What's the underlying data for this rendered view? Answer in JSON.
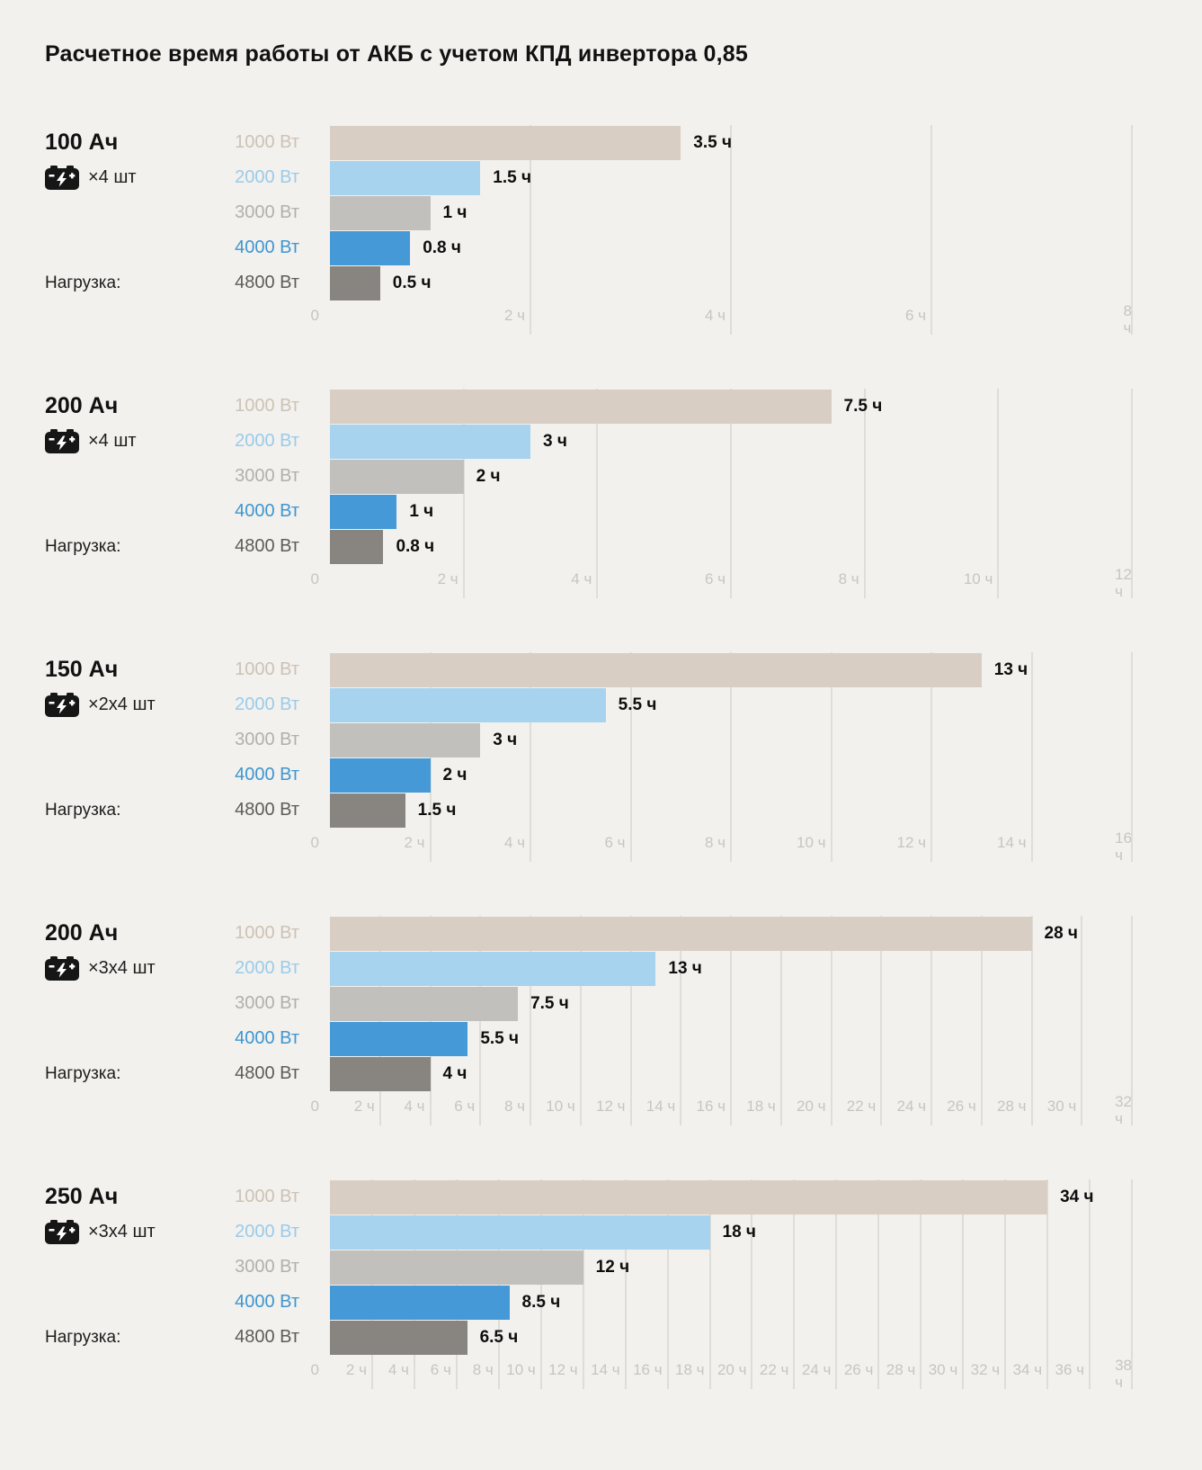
{
  "page": {
    "title": "Расчетное время работы от АКБ с учетом КПД инвертора 0,85"
  },
  "labels": {
    "load": "Нагрузка:",
    "zero_tick": "0",
    "tick_suffix": "ч"
  },
  "colors": {
    "background": "#f2f1ee",
    "bar_colors": [
      "#d9cec3",
      "#a7d3ef",
      "#c2c0bd",
      "#4499d6",
      "#888580"
    ],
    "category_label_colors": [
      "#cdc2b5",
      "#9bcbe9",
      "#b2b0ac",
      "#3e96d0",
      "#5e5c58"
    ],
    "gridline": "#dfddd8",
    "tick_label": "#c7c5c1",
    "value_label": "#0e0e0e",
    "battery_icon": "#161616"
  },
  "chart_data": [
    {
      "type": "bar",
      "orientation": "horizontal",
      "group": {
        "capacity": "100 Ач",
        "batteries": "×4 шт"
      },
      "categories": [
        "1000 Вт",
        "2000 Вт",
        "3000 Вт",
        "4000 Вт",
        "4800 Вт"
      ],
      "values": [
        3.5,
        1.5,
        1,
        0.8,
        0.5
      ],
      "value_labels": [
        "3.5 ч",
        "1.5 ч",
        "1 ч",
        "0.8 ч",
        "0.5 ч"
      ],
      "xlabel": "",
      "ylabel": "",
      "xlim": [
        0,
        8
      ],
      "tick_step": 2
    },
    {
      "type": "bar",
      "orientation": "horizontal",
      "group": {
        "capacity": "200 Ач",
        "batteries": "×4 шт"
      },
      "categories": [
        "1000 Вт",
        "2000 Вт",
        "3000 Вт",
        "4000 Вт",
        "4800 Вт"
      ],
      "values": [
        7.5,
        3,
        2,
        1,
        0.8
      ],
      "value_labels": [
        "7.5 ч",
        "3 ч",
        "2 ч",
        "1 ч",
        "0.8 ч"
      ],
      "xlabel": "",
      "ylabel": "",
      "xlim": [
        0,
        12
      ],
      "tick_step": 2
    },
    {
      "type": "bar",
      "orientation": "horizontal",
      "group": {
        "capacity": "150 Ач",
        "batteries": "×2x4 шт"
      },
      "categories": [
        "1000 Вт",
        "2000 Вт",
        "3000 Вт",
        "4000 Вт",
        "4800 Вт"
      ],
      "values": [
        13,
        5.5,
        3,
        2,
        1.5
      ],
      "value_labels": [
        "13 ч",
        "5.5 ч",
        "3 ч",
        "2 ч",
        "1.5 ч"
      ],
      "xlabel": "",
      "ylabel": "",
      "xlim": [
        0,
        16
      ],
      "tick_step": 2
    },
    {
      "type": "bar",
      "orientation": "horizontal",
      "group": {
        "capacity": "200 Ач",
        "batteries": "×3x4 шт"
      },
      "categories": [
        "1000 Вт",
        "2000 Вт",
        "3000 Вт",
        "4000 Вт",
        "4800 Вт"
      ],
      "values": [
        28,
        13,
        7.5,
        5.5,
        4
      ],
      "value_labels": [
        "28 ч",
        "13 ч",
        "7.5 ч",
        "5.5 ч",
        "4 ч"
      ],
      "xlabel": "",
      "ylabel": "",
      "xlim": [
        0,
        32
      ],
      "tick_step": 2
    },
    {
      "type": "bar",
      "orientation": "horizontal",
      "group": {
        "capacity": "250 Ач",
        "batteries": "×3x4 шт"
      },
      "categories": [
        "1000 Вт",
        "2000 Вт",
        "3000 Вт",
        "4000 Вт",
        "4800 Вт"
      ],
      "values": [
        34,
        18,
        12,
        8.5,
        6.5
      ],
      "value_labels": [
        "34 ч",
        "18 ч",
        "12 ч",
        "8.5 ч",
        "6.5 ч"
      ],
      "xlabel": "",
      "ylabel": "",
      "xlim": [
        0,
        38
      ],
      "tick_step": 2
    }
  ]
}
